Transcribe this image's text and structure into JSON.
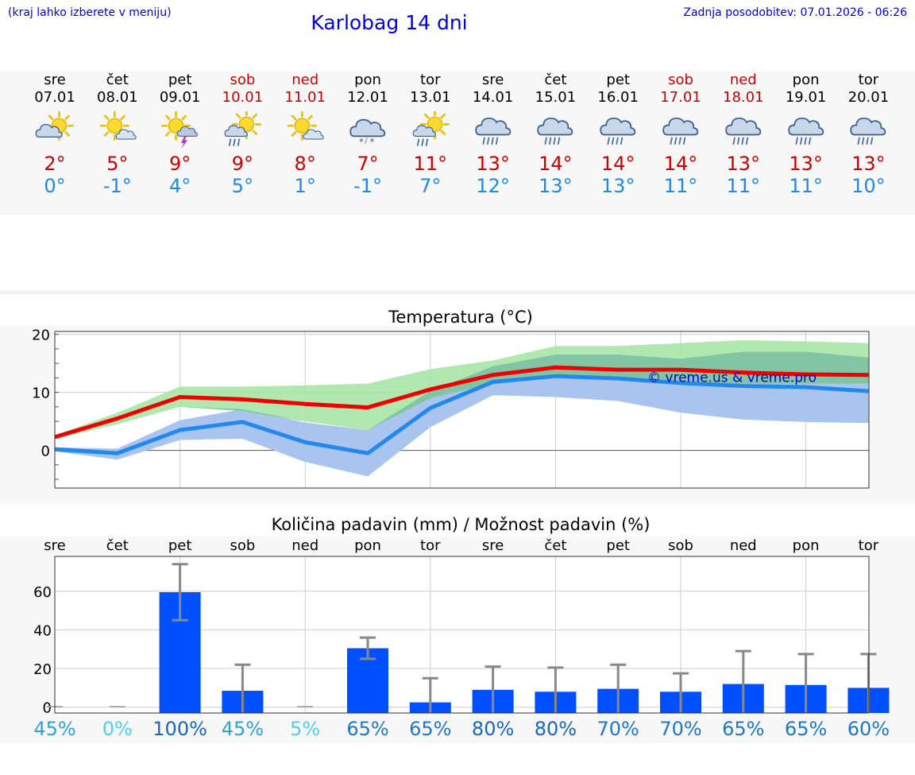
{
  "header": {
    "note": "(kraj lahko izberete v meniju)",
    "title": "Karlobag 14 dni",
    "updated": "Zadnja posodobitev: 07.01.2026 - 06:26"
  },
  "days": [
    {
      "name": "sre",
      "date": "07.01",
      "icon": "partly-cloudy-icon",
      "max": "2°",
      "min": "0°",
      "weekend": false
    },
    {
      "name": "čet",
      "date": "08.01",
      "icon": "sun-small-cloud-icon",
      "max": "5°",
      "min": "-1°",
      "weekend": false
    },
    {
      "name": "pet",
      "date": "09.01",
      "icon": "sun-thunder-icon",
      "max": "9°",
      "min": "4°",
      "weekend": false
    },
    {
      "name": "sob",
      "date": "10.01",
      "icon": "sun-rain-icon",
      "max": "9°",
      "min": "5°",
      "weekend": true
    },
    {
      "name": "ned",
      "date": "11.01",
      "icon": "sun-small-cloud-icon",
      "max": "8°",
      "min": "1°",
      "weekend": true
    },
    {
      "name": "pon",
      "date": "12.01",
      "icon": "cloud-snow-icon",
      "max": "7°",
      "min": "-1°",
      "weekend": false
    },
    {
      "name": "tor",
      "date": "13.01",
      "icon": "sun-rain-icon",
      "max": "11°",
      "min": "7°",
      "weekend": false
    },
    {
      "name": "sre",
      "date": "14.01",
      "icon": "cloud-rain-icon",
      "max": "13°",
      "min": "12°",
      "weekend": false
    },
    {
      "name": "čet",
      "date": "15.01",
      "icon": "cloud-rain-icon",
      "max": "14°",
      "min": "13°",
      "weekend": false
    },
    {
      "name": "pet",
      "date": "16.01",
      "icon": "cloud-rain-icon",
      "max": "14°",
      "min": "13°",
      "weekend": false
    },
    {
      "name": "sob",
      "date": "17.01",
      "icon": "cloud-rain-icon",
      "max": "14°",
      "min": "11°",
      "weekend": true
    },
    {
      "name": "ned",
      "date": "18.01",
      "icon": "cloud-rain-icon",
      "max": "13°",
      "min": "11°",
      "weekend": true
    },
    {
      "name": "pon",
      "date": "19.01",
      "icon": "cloud-rain-icon",
      "max": "13°",
      "min": "11°",
      "weekend": false
    },
    {
      "name": "tor",
      "date": "20.01",
      "icon": "cloud-rain-icon",
      "max": "13°",
      "min": "10°",
      "weekend": false
    }
  ],
  "colors": {
    "max_line": "#ee0000",
    "min_line": "#2288ee",
    "max_band": "#a8e6a6",
    "min_band": "#aac4f0",
    "overlap_band": "#7bbfa2",
    "bar": "#0050ff",
    "error_bar": "#888888",
    "watermark": "#0000dd"
  },
  "chart_data": [
    {
      "type": "line",
      "title": "Temperatura (°C)",
      "watermark": "© vreme.us & vreme.pro",
      "ylim": [
        -6.5,
        20.5
      ],
      "yticks": [
        0,
        10,
        20
      ],
      "series": [
        {
          "name": "max",
          "values": [
            2.3,
            5.5,
            9.2,
            8.8,
            8.0,
            7.4,
            10.5,
            13.0,
            14.3,
            13.9,
            13.9,
            13.4,
            13.1,
            13.0
          ],
          "band_low": [
            2.0,
            4.5,
            7.5,
            6.8,
            5.0,
            3.5,
            9.0,
            11.5,
            12.5,
            12.5,
            11.5,
            11.5,
            11.5,
            11.5
          ],
          "band_high": [
            2.6,
            6.5,
            11.0,
            11.0,
            11.2,
            11.5,
            14.0,
            15.5,
            18.0,
            18.0,
            18.5,
            19.0,
            18.8,
            18.5
          ]
        },
        {
          "name": "min",
          "values": [
            0.2,
            -0.5,
            3.5,
            4.9,
            1.4,
            -0.5,
            7.3,
            11.8,
            12.8,
            12.4,
            11.6,
            11.1,
            10.9,
            10.2
          ],
          "band_low": [
            -0.2,
            -1.6,
            1.8,
            2.0,
            -2.0,
            -4.5,
            4.0,
            9.5,
            9.2,
            8.5,
            6.5,
            5.3,
            4.9,
            4.7
          ],
          "band_high": [
            0.5,
            0.3,
            5.2,
            7.1,
            4.8,
            3.5,
            10.2,
            14.5,
            16.5,
            16.5,
            15.8,
            17.0,
            17.0,
            16.0
          ]
        }
      ]
    },
    {
      "type": "bar",
      "title": "Količina padavin (mm) / Možnost padavin (%)",
      "categories": [
        "sre",
        "čet",
        "pet",
        "sob",
        "ned",
        "pon",
        "tor",
        "sre",
        "čet",
        "pet",
        "sob",
        "ned",
        "pon",
        "tor"
      ],
      "ylim": [
        -3,
        78
      ],
      "yticks": [
        0,
        20,
        40,
        60
      ],
      "values": [
        0,
        0,
        59.5,
        8.5,
        0,
        30.5,
        2.5,
        9,
        8,
        9.5,
        8,
        12,
        11.5,
        10
      ],
      "err_low": [
        0,
        0,
        45,
        0,
        0,
        25,
        0,
        0,
        0,
        0,
        0,
        0,
        0,
        0
      ],
      "err_high": [
        0,
        0,
        74,
        22,
        0,
        36,
        15,
        21,
        20.5,
        22,
        17.5,
        29,
        27.5,
        27.5
      ],
      "probability": [
        "45%",
        "0%",
        "100%",
        "45%",
        "5%",
        "65%",
        "65%",
        "80%",
        "80%",
        "70%",
        "70%",
        "65%",
        "65%",
        "60%"
      ],
      "probability_colors": [
        "#2ea3d6",
        "#55ccee",
        "#1a66bb",
        "#2ea3d6",
        "#55ccee",
        "#1e78c8",
        "#1e78c8",
        "#1a66bb",
        "#1a66bb",
        "#1e78c8",
        "#1e78c8",
        "#1e78c8",
        "#1e78c8",
        "#1e78c8"
      ]
    }
  ]
}
